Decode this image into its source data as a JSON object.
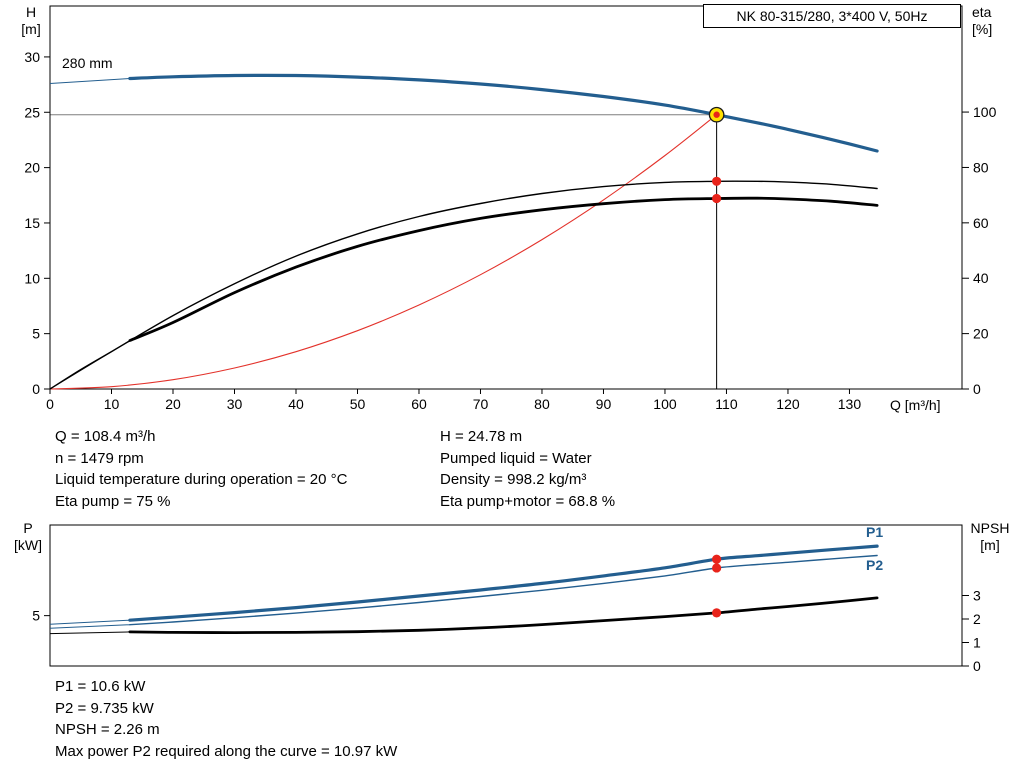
{
  "pump_title": "NK 80-315/280, 3*400 V, 50Hz",
  "colors": {
    "curve_blue": "#235e8f",
    "curve_black": "#000000",
    "system_red": "#e3322b",
    "dot_red": "#e8231a",
    "duty_yellow": "#ffe000",
    "guide_gray": "#7f7f7f"
  },
  "info_top": {
    "left": [
      "Q = 108.4 m³/h",
      "n = 1479 rpm",
      "Liquid temperature during operation = 20 °C",
      "Eta pump = 75 %"
    ],
    "right": [
      "H = 24.78 m",
      "Pumped liquid = Water",
      "Density = 998.2 kg/m³",
      "Eta pump+motor = 68.8 %"
    ]
  },
  "info_bottom": [
    "P1 = 10.6 kW",
    "P2 = 9.735 kW",
    "NPSH = 2.26 m",
    "Max power P2 required along the curve = 10.97 kW"
  ],
  "chart_data": [
    {
      "id": "main",
      "type": "line",
      "title": "NK 80-315/280, 3*400 V, 50Hz",
      "impeller_label": "280 mm",
      "xlabel": "Q [m³/h]",
      "xlim": [
        0,
        148.3
      ],
      "x_ticks": [
        0,
        10,
        20,
        30,
        40,
        50,
        60,
        70,
        80,
        90,
        100,
        110,
        120,
        130
      ],
      "axes": {
        "left": {
          "label": "H",
          "unit": "[m]",
          "ticks": [
            0,
            5,
            10,
            15,
            20,
            25,
            30
          ],
          "range": [
            0,
            34.6
          ]
        },
        "right": {
          "label": "eta",
          "unit": "[%]",
          "ticks": [
            0,
            20,
            40,
            60,
            80,
            100
          ],
          "range": [
            0,
            138.3
          ]
        }
      },
      "duty_lines": {
        "q": 108.4,
        "h": 24.78
      },
      "series": [
        {
          "name": "system-curve",
          "axis": "left",
          "color": "#e3322b",
          "width": 1.1,
          "points": [
            [
              0,
              0
            ],
            [
              10,
              0.21
            ],
            [
              20,
              0.84
            ],
            [
              30,
              1.9
            ],
            [
              40,
              3.37
            ],
            [
              50,
              5.27
            ],
            [
              60,
              7.59
            ],
            [
              70,
              10.33
            ],
            [
              80,
              13.5
            ],
            [
              90,
              17.08
            ],
            [
              100,
              21.09
            ],
            [
              108.4,
              24.78
            ]
          ]
        },
        {
          "name": "eta-pump",
          "axis": "right",
          "color": "#000000",
          "width": 1.4,
          "points": [
            [
              0,
              0
            ],
            [
              5,
              7
            ],
            [
              10,
              13.5
            ],
            [
              20,
              26.5
            ],
            [
              30,
              38
            ],
            [
              40,
              48
            ],
            [
              50,
              56
            ],
            [
              60,
              62.3
            ],
            [
              70,
              67
            ],
            [
              80,
              70.6
            ],
            [
              90,
              73.1
            ],
            [
              100,
              74.6
            ],
            [
              108.4,
              75
            ],
            [
              115,
              75
            ],
            [
              120,
              74.7
            ],
            [
              127,
              73.9
            ],
            [
              134.5,
              72.4
            ]
          ]
        },
        {
          "name": "eta-pump-motor",
          "axis": "right",
          "color": "#000000",
          "width": 2.8,
          "lead_in": [
            [
              0,
              0
            ],
            [
              13,
              17.5
            ]
          ],
          "points": [
            [
              13,
              17.5
            ],
            [
              20,
              24
            ],
            [
              30,
              34.8
            ],
            [
              40,
              44
            ],
            [
              50,
              51.5
            ],
            [
              60,
              57.2
            ],
            [
              70,
              61.6
            ],
            [
              80,
              64.7
            ],
            [
              90,
              66.9
            ],
            [
              100,
              68.4
            ],
            [
              108.4,
              68.8
            ],
            [
              115,
              68.9
            ],
            [
              120,
              68.6
            ],
            [
              127,
              67.8
            ],
            [
              134.5,
              66.3
            ]
          ]
        },
        {
          "name": "head",
          "axis": "left",
          "color": "#235e8f",
          "width": 3.2,
          "lead_in": [
            [
              0,
              27.6
            ],
            [
              13,
              28.05
            ]
          ],
          "points": [
            [
              13,
              28.05
            ],
            [
              20,
              28.2
            ],
            [
              30,
              28.32
            ],
            [
              40,
              28.32
            ],
            [
              50,
              28.18
            ],
            [
              60,
              27.92
            ],
            [
              70,
              27.55
            ],
            [
              80,
              27.05
            ],
            [
              90,
              26.42
            ],
            [
              100,
              25.65
            ],
            [
              108.4,
              24.78
            ],
            [
              115,
              24.05
            ],
            [
              120,
              23.45
            ],
            [
              127,
              22.55
            ],
            [
              134.5,
              21.5
            ]
          ]
        }
      ],
      "markers": [
        {
          "type": "duty",
          "axis": "left",
          "q": 108.4,
          "v": 24.78
        },
        {
          "type": "dot",
          "axis": "right",
          "q": 108.4,
          "v": 75
        },
        {
          "type": "dot",
          "axis": "right",
          "q": 108.4,
          "v": 68.8
        }
      ]
    },
    {
      "id": "power",
      "type": "line",
      "xlim": [
        0,
        148.3
      ],
      "axes": {
        "left": {
          "label": "P",
          "unit": "[kW]",
          "ticks": [
            5
          ],
          "range": [
            0,
            14
          ]
        },
        "right": {
          "label": "NPSH",
          "unit": "[m]",
          "ticks": [
            0,
            1,
            2,
            3
          ],
          "range": [
            0,
            6
          ]
        }
      },
      "series": [
        {
          "name": "p1",
          "label": "P1",
          "axis": "left",
          "color": "#235e8f",
          "width": 3.2,
          "lead_in": [
            [
              0,
              4.15
            ],
            [
              13,
              4.55
            ]
          ],
          "points": [
            [
              13,
              4.55
            ],
            [
              20,
              4.85
            ],
            [
              30,
              5.3
            ],
            [
              40,
              5.8
            ],
            [
              50,
              6.35
            ],
            [
              60,
              6.95
            ],
            [
              70,
              7.55
            ],
            [
              80,
              8.2
            ],
            [
              90,
              8.95
            ],
            [
              100,
              9.75
            ],
            [
              108.4,
              10.6
            ],
            [
              115,
              10.95
            ],
            [
              120,
              11.2
            ],
            [
              127,
              11.55
            ],
            [
              134.5,
              11.9
            ]
          ]
        },
        {
          "name": "p2",
          "label": "P2",
          "axis": "left",
          "color": "#235e8f",
          "width": 1.4,
          "lead_in": [
            [
              0,
              3.75
            ],
            [
              13,
              4.1
            ]
          ],
          "points": [
            [
              13,
              4.1
            ],
            [
              20,
              4.37
            ],
            [
              30,
              4.8
            ],
            [
              40,
              5.25
            ],
            [
              50,
              5.75
            ],
            [
              60,
              6.3
            ],
            [
              70,
              6.9
            ],
            [
              80,
              7.52
            ],
            [
              90,
              8.2
            ],
            [
              100,
              8.95
            ],
            [
              108.4,
              9.735
            ],
            [
              115,
              10.08
            ],
            [
              120,
              10.3
            ],
            [
              127,
              10.63
            ],
            [
              134.5,
              10.97
            ]
          ]
        },
        {
          "name": "npsh",
          "axis": "right",
          "color": "#000000",
          "width": 2.8,
          "lead_in": [
            [
              0,
              1.38
            ],
            [
              13,
              1.45
            ]
          ],
          "points": [
            [
              13,
              1.45
            ],
            [
              20,
              1.43
            ],
            [
              30,
              1.42
            ],
            [
              40,
              1.43
            ],
            [
              50,
              1.46
            ],
            [
              60,
              1.52
            ],
            [
              70,
              1.62
            ],
            [
              80,
              1.76
            ],
            [
              90,
              1.93
            ],
            [
              100,
              2.1
            ],
            [
              108.4,
              2.26
            ],
            [
              115,
              2.42
            ],
            [
              120,
              2.53
            ],
            [
              127,
              2.7
            ],
            [
              134.5,
              2.9
            ]
          ]
        }
      ],
      "markers": [
        {
          "type": "dot",
          "axis": "left",
          "q": 108.4,
          "v": 10.6
        },
        {
          "type": "dot",
          "axis": "left",
          "q": 108.4,
          "v": 9.735
        },
        {
          "type": "dot",
          "axis": "right",
          "q": 108.4,
          "v": 2.26
        }
      ]
    }
  ]
}
